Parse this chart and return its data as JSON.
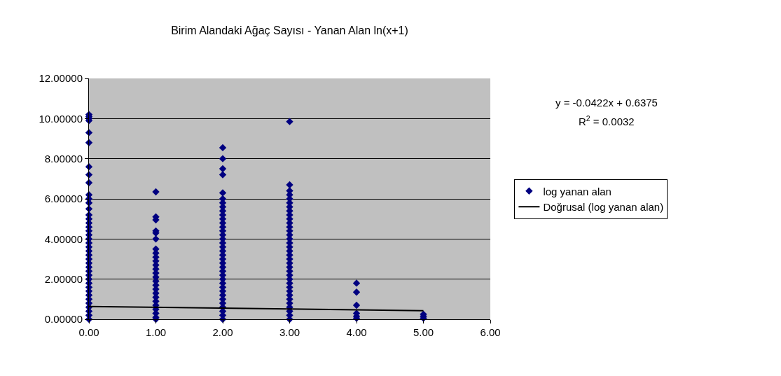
{
  "chart_data": {
    "type": "scatter",
    "title": "Birim Alandaki Ağaç Sayısı - Yanan Alan ln(x+1)",
    "annotations": [
      "y = -0.0422x + 0.6375",
      "R$^{2}$ = 0.0032"
    ],
    "series": [
      {
        "name": "log yanan alan",
        "color": "#000080",
        "x": [
          0,
          0,
          0,
          0,
          0,
          0,
          0,
          0,
          0,
          0,
          0,
          0,
          0,
          0,
          0,
          0,
          0,
          0,
          0,
          0,
          0,
          0,
          0,
          0,
          0,
          0,
          0,
          0,
          0,
          0,
          0,
          0,
          0,
          0,
          0,
          0,
          0,
          0,
          0,
          0,
          1,
          1,
          1,
          1,
          1,
          1,
          1,
          1,
          1,
          1,
          1,
          1,
          1,
          1,
          1,
          1,
          1,
          1,
          1,
          1,
          1,
          1,
          1,
          1,
          1,
          2,
          2,
          2,
          2,
          2,
          2,
          2,
          2,
          2,
          2,
          2,
          2,
          2,
          2,
          2,
          2,
          2,
          2,
          2,
          2,
          2,
          2,
          2,
          2,
          2,
          2,
          2,
          2,
          2,
          2,
          2,
          2,
          2,
          2,
          2,
          2,
          3,
          3,
          3,
          3,
          3,
          3,
          3,
          3,
          3,
          3,
          3,
          3,
          3,
          3,
          3,
          3,
          3,
          3,
          3,
          3,
          3,
          3,
          3,
          3,
          3,
          3,
          3,
          3,
          3,
          3,
          3,
          3,
          3,
          3,
          3,
          4,
          4,
          4,
          4,
          4,
          4,
          5,
          5,
          5
        ],
        "values": [
          10.2,
          10.1,
          10.0,
          9.9,
          9.3,
          8.8,
          7.6,
          7.2,
          6.8,
          6.2,
          6.0,
          5.8,
          5.5,
          5.2,
          5.0,
          4.8,
          4.6,
          4.4,
          4.2,
          4.0,
          3.8,
          3.6,
          3.4,
          3.2,
          3.0,
          2.8,
          2.6,
          2.4,
          2.2,
          2.0,
          1.8,
          1.6,
          1.4,
          1.2,
          1.0,
          0.8,
          0.6,
          0.4,
          0.2,
          0.0,
          6.35,
          5.1,
          4.95,
          4.4,
          4.3,
          4.0,
          3.5,
          3.3,
          3.1,
          2.9,
          2.7,
          2.5,
          2.3,
          2.1,
          1.9,
          1.7,
          1.5,
          1.3,
          1.1,
          0.9,
          0.7,
          0.5,
          0.3,
          0.1,
          0.0,
          8.55,
          8.0,
          7.5,
          7.2,
          6.3,
          6.0,
          5.8,
          5.6,
          5.4,
          5.2,
          5.0,
          4.8,
          4.6,
          4.4,
          4.2,
          4.0,
          3.8,
          3.6,
          3.4,
          3.2,
          3.0,
          2.8,
          2.6,
          2.4,
          2.2,
          2.0,
          1.8,
          1.6,
          1.4,
          1.2,
          1.0,
          0.8,
          0.6,
          0.4,
          0.2,
          0.0,
          9.85,
          6.7,
          6.4,
          6.2,
          6.0,
          5.8,
          5.6,
          5.4,
          5.2,
          5.0,
          4.8,
          4.6,
          4.4,
          4.2,
          4.0,
          3.8,
          3.6,
          3.4,
          3.2,
          3.0,
          2.8,
          2.6,
          2.4,
          2.2,
          2.0,
          1.8,
          1.6,
          1.4,
          1.2,
          1.0,
          0.8,
          0.6,
          0.4,
          0.2,
          0.0,
          1.8,
          1.35,
          0.7,
          0.3,
          0.15,
          0.05,
          0.25,
          0.15,
          0.05
        ]
      },
      {
        "name": "Doğrusal (log yanan alan)",
        "color": "#000000",
        "type": "line",
        "marker": "none",
        "x": [
          0,
          5
        ],
        "values": [
          0.64,
          0.43
        ]
      }
    ],
    "xlim": [
      0,
      6
    ],
    "xticks": [
      {
        "value": 0,
        "label": "0.00"
      },
      {
        "value": 1,
        "label": "1.00"
      },
      {
        "value": 2,
        "label": "2.00"
      },
      {
        "value": 3,
        "label": "3.00"
      },
      {
        "value": 4,
        "label": "4.00"
      },
      {
        "value": 5,
        "label": "5.00"
      },
      {
        "value": 6,
        "label": "6.00"
      }
    ],
    "ylim": [
      0,
      12
    ],
    "yticks": [
      {
        "value": 0,
        "label": "0.00000"
      },
      {
        "value": 2,
        "label": "2.00000"
      },
      {
        "value": 4,
        "label": "4.00000"
      },
      {
        "value": 6,
        "label": "6.00000"
      },
      {
        "value": 8,
        "label": "8.00000"
      },
      {
        "value": 10,
        "label": "10.00000"
      },
      {
        "value": 12,
        "label": "12.00000"
      }
    ],
    "grid": "y",
    "legend": "right",
    "marker": "diamond",
    "line_style": "solid"
  }
}
